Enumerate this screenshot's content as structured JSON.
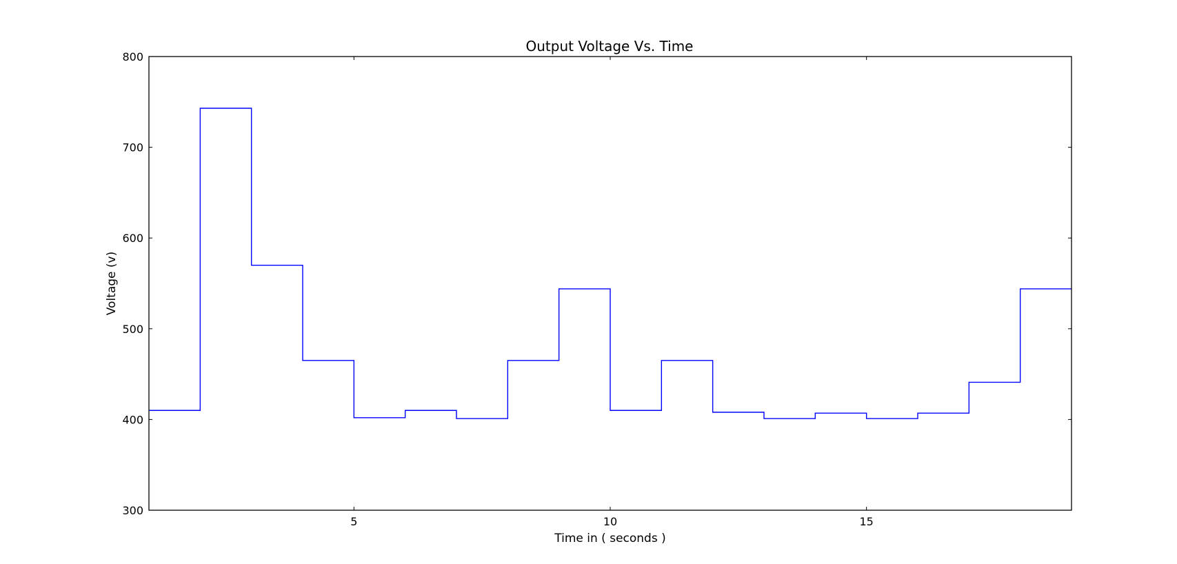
{
  "chart_data": {
    "type": "line",
    "style": "step",
    "title": "Output Voltage Vs. Time",
    "xlabel": "Time in ( seconds )",
    "ylabel": "Voltage (v)",
    "xlim": [
      1,
      19
    ],
    "ylim": [
      300,
      800
    ],
    "xticks": [
      5,
      10,
      15
    ],
    "yticks": [
      300,
      400,
      500,
      600,
      700,
      800
    ],
    "grid": false,
    "series": [
      {
        "color": "#0000ff",
        "x": [
          1,
          2,
          3,
          4,
          5,
          6,
          7,
          8,
          9,
          10,
          11,
          12,
          13,
          14,
          15,
          16,
          17,
          18,
          19
        ],
        "values": [
          410,
          743,
          570,
          465,
          402,
          410,
          401,
          465,
          544,
          410,
          465,
          408,
          401,
          407,
          401,
          407,
          441,
          544,
          544
        ]
      }
    ]
  }
}
